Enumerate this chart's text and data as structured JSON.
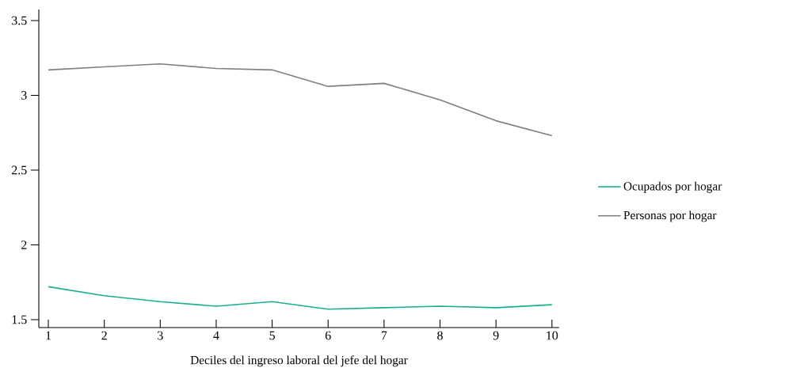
{
  "chart_data": {
    "type": "line",
    "xlabel": "Deciles del ingreso laboral del jefe del hogar",
    "x": [
      1,
      2,
      3,
      4,
      5,
      6,
      7,
      8,
      9,
      10
    ],
    "series": [
      {
        "name": "Ocupados por hogar",
        "color": "#1aaf8b",
        "values": [
          1.72,
          1.66,
          1.62,
          1.59,
          1.62,
          1.57,
          1.58,
          1.59,
          1.58,
          1.6
        ]
      },
      {
        "name": "Personas por hogar",
        "color": "#7f7f7f",
        "values": [
          3.17,
          3.19,
          3.21,
          3.18,
          3.17,
          3.06,
          3.08,
          2.97,
          2.83,
          2.73
        ]
      }
    ],
    "xlim": [
      0.83,
      10.13
    ],
    "ylim": [
      1.447,
      3.574
    ],
    "xticks": [
      1,
      2,
      3,
      4,
      5,
      6,
      7,
      8,
      9,
      10
    ],
    "yticks": [
      1.5,
      2,
      2.5,
      3,
      3.5
    ],
    "grid": false,
    "legend": "right",
    "marker": "none",
    "line_style": "solid"
  }
}
